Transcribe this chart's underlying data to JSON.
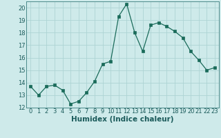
{
  "x": [
    0,
    1,
    2,
    3,
    4,
    5,
    6,
    7,
    8,
    9,
    10,
    11,
    12,
    13,
    14,
    15,
    16,
    17,
    18,
    19,
    20,
    21,
    22,
    23
  ],
  "y": [
    13.7,
    13.0,
    13.7,
    13.8,
    13.4,
    12.3,
    12.5,
    13.2,
    14.1,
    15.5,
    15.7,
    19.3,
    20.3,
    18.0,
    16.5,
    18.6,
    18.8,
    18.5,
    18.1,
    17.6,
    16.5,
    15.8,
    15.0,
    15.2
  ],
  "xlabel": "Humidex (Indice chaleur)",
  "xlim": [
    -0.5,
    23.5
  ],
  "ylim": [
    12,
    20.5
  ],
  "yticks": [
    12,
    13,
    14,
    15,
    16,
    17,
    18,
    19,
    20
  ],
  "xticks": [
    0,
    1,
    2,
    3,
    4,
    5,
    6,
    7,
    8,
    9,
    10,
    11,
    12,
    13,
    14,
    15,
    16,
    17,
    18,
    19,
    20,
    21,
    22,
    23
  ],
  "line_color": "#1a6b5a",
  "marker_color": "#1a6b5a",
  "bg_color": "#ceeaea",
  "grid_color": "#add4d4",
  "tick_label_color": "#1a5a5a",
  "xlabel_color": "#1a5a5a",
  "tick_label_fontsize": 6.0,
  "xlabel_fontsize": 7.5,
  "spine_color": "#4a8a8a"
}
